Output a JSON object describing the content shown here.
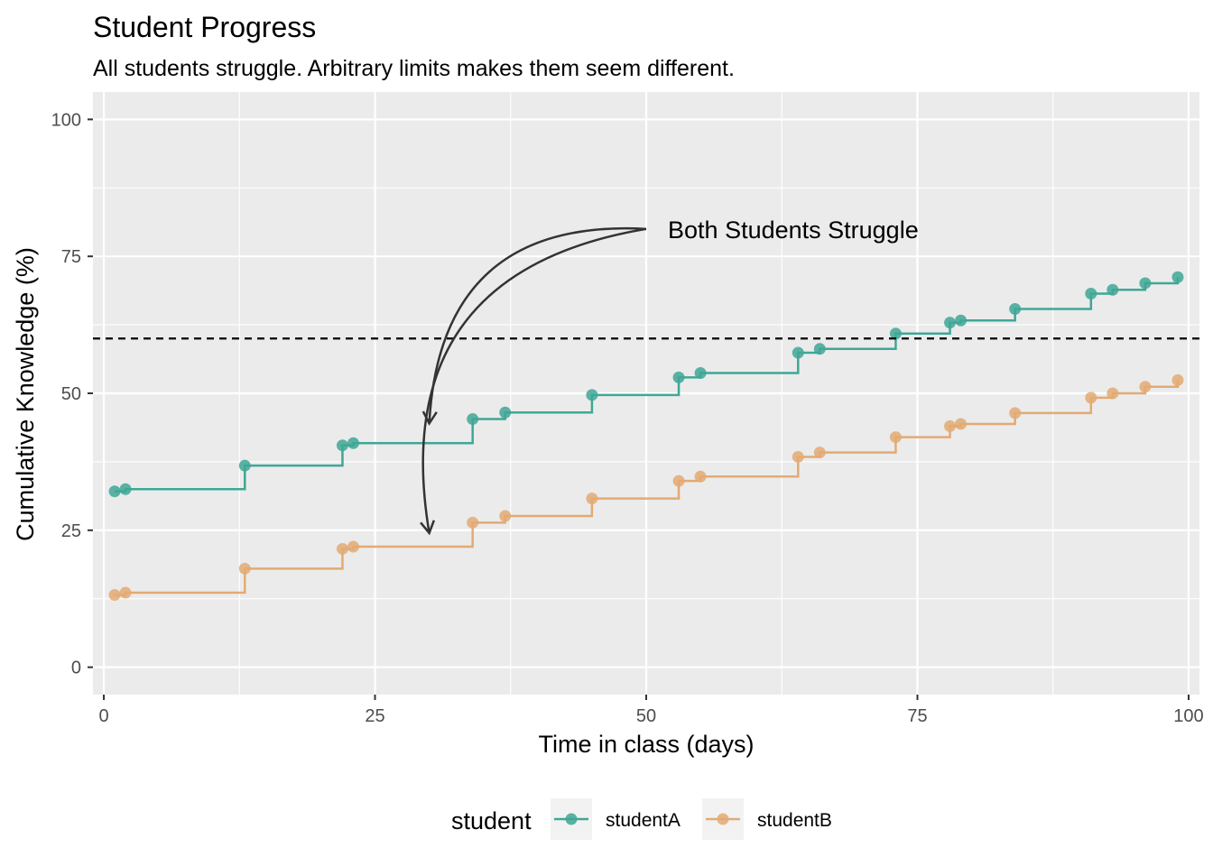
{
  "chart_data": {
    "type": "line",
    "step": true,
    "title": "Student Progress",
    "subtitle": "All students struggle. Arbitrary limits makes them seem different.",
    "xlabel": "Time in class (days)",
    "ylabel": "Cumulative Knowledge (%)",
    "xlim": [
      -1,
      101
    ],
    "ylim": [
      -5,
      105
    ],
    "x_ticks": [
      0,
      25,
      50,
      75,
      100
    ],
    "y_ticks": [
      0,
      25,
      50,
      75,
      100
    ],
    "grid": true,
    "legend": {
      "title": "student",
      "position": "bottom"
    },
    "reference_line": {
      "y": 60,
      "style": "dashed",
      "color": "#000000"
    },
    "annotation": {
      "text": "Both Students Struggle",
      "x": 52,
      "y": 80,
      "arrow_from": [
        50,
        80
      ],
      "arrow_targets": [
        [
          30,
          44.5
        ],
        [
          30,
          24.5
        ]
      ]
    },
    "series": [
      {
        "name": "studentA",
        "color": "#3fa796",
        "points": [
          [
            1,
            32.1
          ],
          [
            2,
            32.5
          ],
          [
            13,
            36.8
          ],
          [
            22,
            40.5
          ],
          [
            23,
            40.9
          ],
          [
            34,
            45.3
          ],
          [
            37,
            46.5
          ],
          [
            45,
            49.7
          ],
          [
            53,
            52.9
          ],
          [
            55,
            53.7
          ],
          [
            64,
            57.4
          ],
          [
            66,
            58.1
          ],
          [
            73,
            60.9
          ],
          [
            78,
            62.9
          ],
          [
            79,
            63.3
          ],
          [
            84,
            65.4
          ],
          [
            91,
            68.2
          ],
          [
            93,
            68.9
          ],
          [
            96,
            70.1
          ],
          [
            99,
            71.2
          ]
        ]
      },
      {
        "name": "studentB",
        "color": "#e3aa73",
        "points": [
          [
            1,
            13.2
          ],
          [
            2,
            13.6
          ],
          [
            13,
            18.0
          ],
          [
            22,
            21.6
          ],
          [
            23,
            22.0
          ],
          [
            34,
            26.4
          ],
          [
            37,
            27.6
          ],
          [
            45,
            30.8
          ],
          [
            53,
            34.0
          ],
          [
            55,
            34.8
          ],
          [
            64,
            38.4
          ],
          [
            66,
            39.2
          ],
          [
            73,
            42.0
          ],
          [
            78,
            44.0
          ],
          [
            79,
            44.4
          ],
          [
            84,
            46.4
          ],
          [
            91,
            49.2
          ],
          [
            93,
            50.0
          ],
          [
            96,
            51.2
          ],
          [
            99,
            52.4
          ]
        ]
      }
    ]
  }
}
